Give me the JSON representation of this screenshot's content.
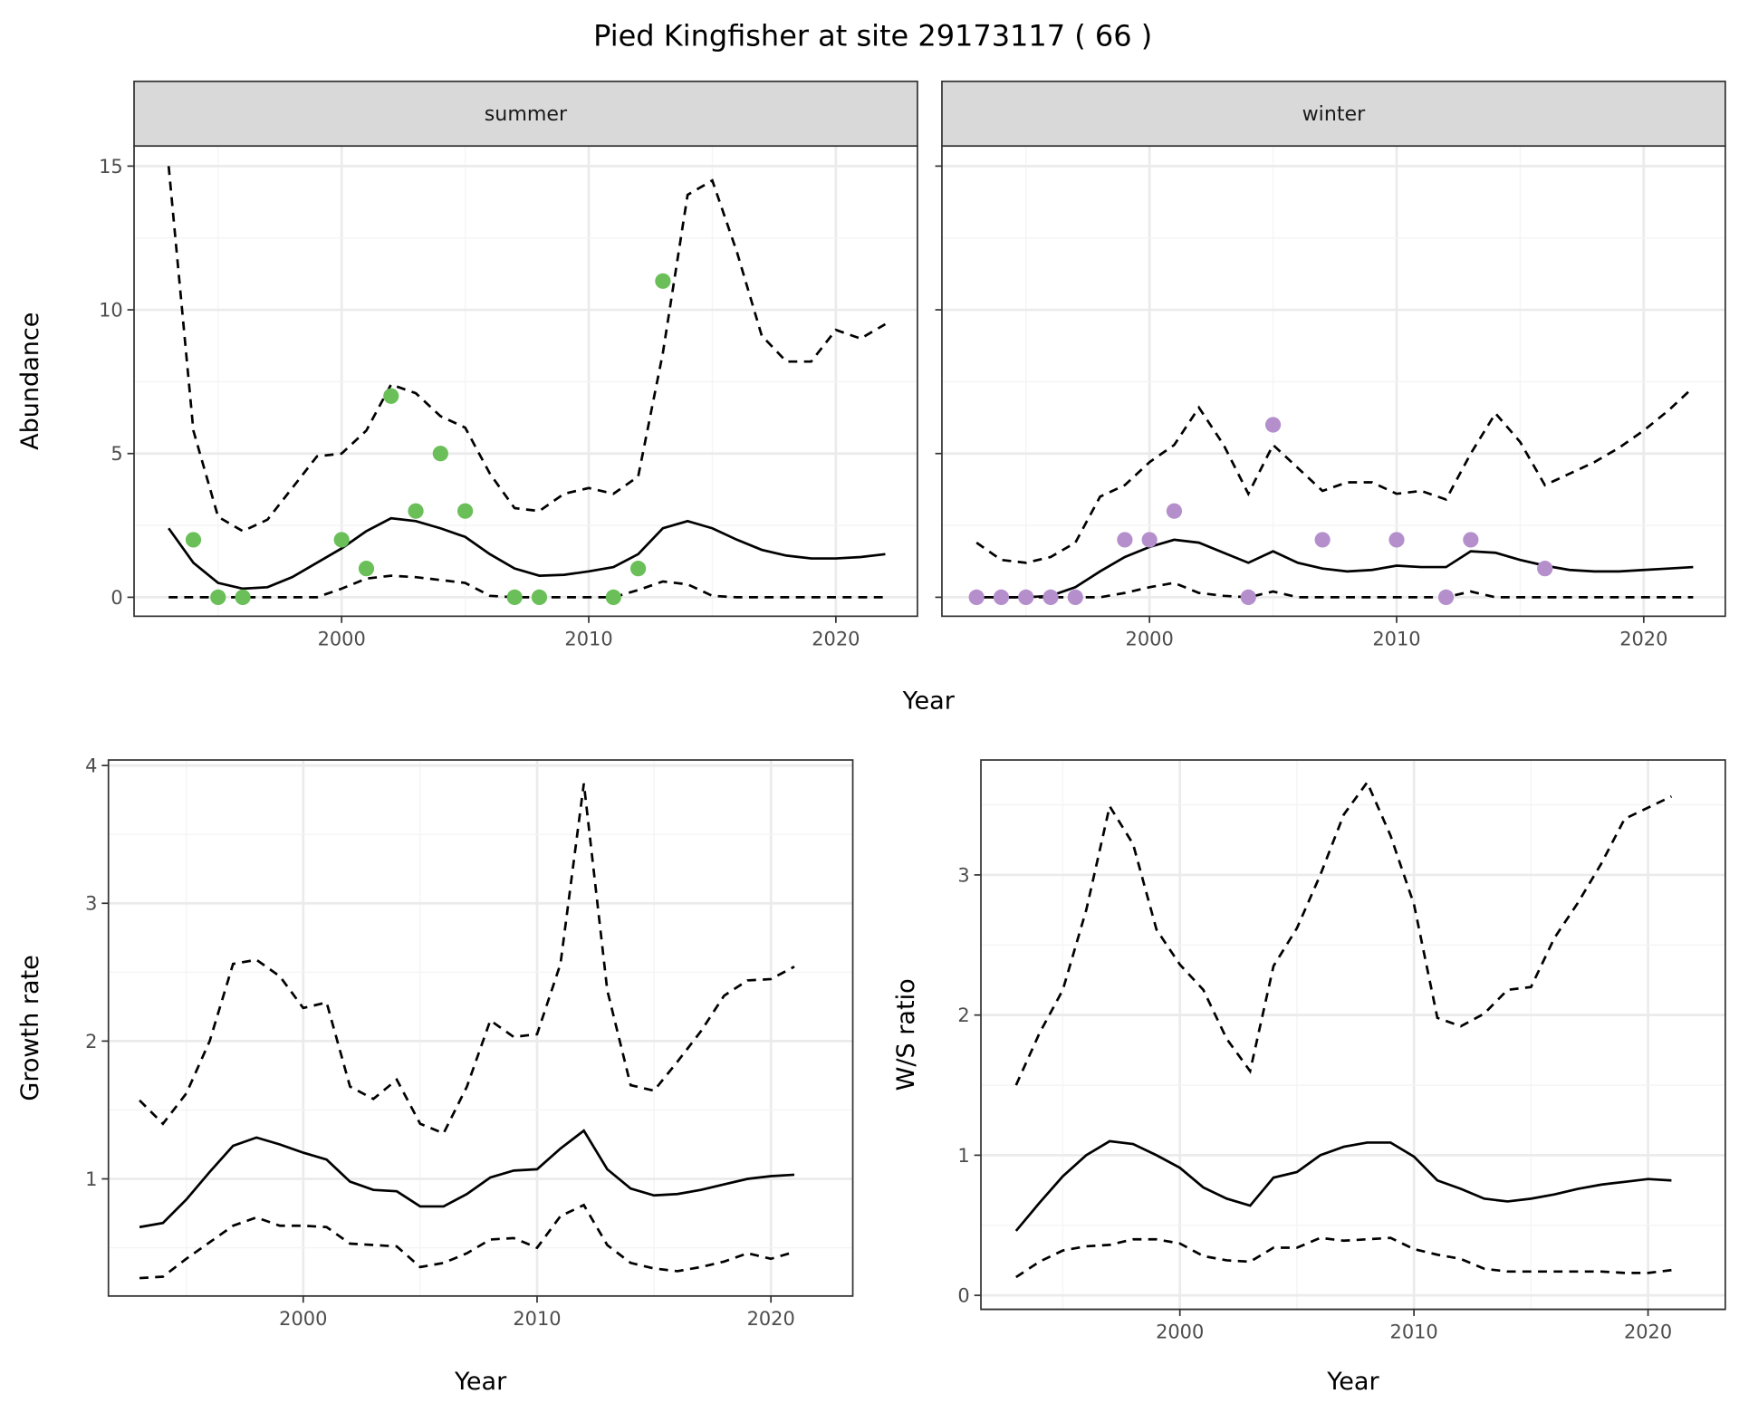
{
  "title": "Pied Kingfisher at site 29173117 ( 66 )",
  "colors": {
    "summer": "#6abf59",
    "winter": "#b48fcc",
    "line": "#000000"
  },
  "chart_data": [
    {
      "id": "summer",
      "type": "line",
      "strip": "summer",
      "xlabel": "Year",
      "ylabel": "Abundance",
      "xlim": [
        1991.6,
        2023.3
      ],
      "ylim": [
        -0.66,
        15.7
      ],
      "xticks": [
        2000,
        2010,
        2020
      ],
      "xtick_labels": [
        "2000",
        "2010",
        "2020"
      ],
      "yticks": [
        0,
        5,
        10,
        15
      ],
      "ytick_labels": [
        "0",
        "5",
        "10",
        "15"
      ],
      "grid": true,
      "x": [
        1993,
        1994,
        1995,
        1996,
        1997,
        1998,
        1999,
        2000,
        2001,
        2002,
        2003,
        2004,
        2005,
        2006,
        2007,
        2008,
        2009,
        2010,
        2011,
        2012,
        2013,
        2014,
        2015,
        2016,
        2017,
        2018,
        2019,
        2020,
        2021,
        2022
      ],
      "series": [
        {
          "name": "mean",
          "style": "solid",
          "values": [
            2.4,
            1.2,
            0.5,
            0.3,
            0.35,
            0.7,
            1.2,
            1.7,
            2.3,
            2.75,
            2.65,
            2.4,
            2.1,
            1.5,
            1.0,
            0.75,
            0.78,
            0.9,
            1.05,
            1.5,
            2.4,
            2.65,
            2.4,
            2.0,
            1.65,
            1.45,
            1.35,
            1.35,
            1.4,
            1.5
          ]
        },
        {
          "name": "upper",
          "style": "dashed",
          "values": [
            15,
            5.8,
            2.8,
            2.3,
            2.7,
            3.8,
            4.9,
            5.0,
            5.8,
            7.4,
            7.1,
            6.3,
            5.9,
            4.3,
            3.1,
            3.0,
            3.6,
            3.8,
            3.6,
            4.2,
            8.5,
            14,
            14.5,
            12,
            9.1,
            8.2,
            8.2,
            9.3,
            9.0,
            9.5
          ]
        },
        {
          "name": "lower",
          "style": "dashed",
          "values": [
            0,
            0,
            0,
            0,
            0,
            0,
            0,
            0.3,
            0.65,
            0.75,
            0.7,
            0.6,
            0.5,
            0.05,
            0,
            0,
            0,
            0,
            0,
            0.25,
            0.55,
            0.45,
            0.05,
            0,
            0,
            0,
            0,
            0,
            0,
            0
          ]
        }
      ],
      "points": {
        "x": [
          1994,
          1995,
          1996,
          2000,
          2001,
          2002,
          2003,
          2004,
          2005,
          2007,
          2008,
          2011,
          2012,
          2013
        ],
        "y": [
          2,
          0,
          0,
          2,
          1,
          7,
          3,
          5,
          3,
          0,
          0,
          0,
          1,
          11
        ]
      }
    },
    {
      "id": "winter",
      "type": "line",
      "strip": "winter",
      "xlabel": "",
      "ylabel": "",
      "xlim": [
        1991.6,
        2023.3
      ],
      "ylim": [
        -0.66,
        15.7
      ],
      "xticks": [
        2000,
        2010,
        2020
      ],
      "xtick_labels": [
        "2000",
        "2010",
        "2020"
      ],
      "yticks": [
        0,
        5,
        10,
        15
      ],
      "ytick_labels": [],
      "grid": true,
      "x": [
        1993,
        1994,
        1995,
        1996,
        1997,
        1998,
        1999,
        2000,
        2001,
        2002,
        2003,
        2004,
        2005,
        2006,
        2007,
        2008,
        2009,
        2010,
        2011,
        2012,
        2013,
        2014,
        2015,
        2016,
        2017,
        2018,
        2019,
        2020,
        2021,
        2022
      ],
      "series": [
        {
          "name": "mean",
          "style": "solid",
          "values": [
            0,
            0,
            0,
            0.05,
            0.35,
            0.9,
            1.4,
            1.75,
            2.0,
            1.9,
            1.55,
            1.2,
            1.6,
            1.2,
            1.0,
            0.9,
            0.95,
            1.1,
            1.05,
            1.05,
            1.6,
            1.55,
            1.3,
            1.1,
            0.95,
            0.9,
            0.9,
            0.95,
            1.0,
            1.05
          ]
        },
        {
          "name": "upper",
          "style": "dashed",
          "values": [
            1.9,
            1.3,
            1.2,
            1.4,
            1.9,
            3.5,
            3.9,
            4.7,
            5.3,
            6.6,
            5.3,
            3.6,
            5.3,
            4.5,
            3.7,
            4.0,
            4.0,
            3.6,
            3.7,
            3.4,
            5.0,
            6.4,
            5.4,
            3.9,
            4.3,
            4.7,
            5.2,
            5.8,
            6.5,
            7.3
          ]
        },
        {
          "name": "lower",
          "style": "dashed",
          "values": [
            0,
            0,
            0,
            0,
            0,
            0,
            0.15,
            0.35,
            0.5,
            0.15,
            0.05,
            0,
            0.2,
            0,
            0,
            0,
            0,
            0,
            0,
            0,
            0.2,
            0,
            0,
            0,
            0,
            0,
            0,
            0,
            0,
            0
          ]
        }
      ],
      "points": {
        "x": [
          1993,
          1994,
          1995,
          1996,
          1997,
          1999,
          2000,
          2001,
          2004,
          2005,
          2007,
          2010,
          2012,
          2013,
          2016
        ],
        "y": [
          0,
          0,
          0,
          0,
          0,
          2,
          2,
          3,
          0,
          6,
          2,
          2,
          0,
          2,
          1
        ]
      }
    },
    {
      "id": "growth",
      "type": "line",
      "xlabel": "Year",
      "ylabel": "Growth rate",
      "xlim": [
        1991.67,
        2023.5
      ],
      "ylim": [
        0.15,
        4.04
      ],
      "xticks": [
        2000,
        2010,
        2020
      ],
      "xtick_labels": [
        "2000",
        "2010",
        "2020"
      ],
      "yticks": [
        1,
        2,
        3,
        4
      ],
      "ytick_labels": [
        "1",
        "2",
        "3",
        "4"
      ],
      "grid": true,
      "x": [
        1993,
        1994,
        1995,
        1996,
        1997,
        1998,
        1999,
        2000,
        2001,
        2002,
        2003,
        2004,
        2005,
        2006,
        2007,
        2008,
        2009,
        2010,
        2011,
        2012,
        2013,
        2014,
        2015,
        2016,
        2017,
        2018,
        2019,
        2020,
        2021
      ],
      "series": [
        {
          "name": "mean",
          "style": "solid",
          "values": [
            0.65,
            0.68,
            0.85,
            1.05,
            1.24,
            1.3,
            1.25,
            1.19,
            1.14,
            0.98,
            0.92,
            0.91,
            0.8,
            0.8,
            0.89,
            1.01,
            1.06,
            1.07,
            1.22,
            1.35,
            1.07,
            0.93,
            0.88,
            0.89,
            0.92,
            0.96,
            1.0,
            1.02,
            1.03
          ]
        },
        {
          "name": "upper",
          "style": "dashed",
          "values": [
            1.57,
            1.4,
            1.62,
            2.0,
            2.56,
            2.59,
            2.47,
            2.24,
            2.28,
            1.67,
            1.58,
            1.72,
            1.4,
            1.33,
            1.67,
            2.15,
            2.03,
            2.05,
            2.56,
            3.87,
            2.37,
            1.68,
            1.64,
            1.85,
            2.07,
            2.33,
            2.44,
            2.45,
            2.54
          ]
        },
        {
          "name": "lower",
          "style": "dashed",
          "values": [
            0.28,
            0.29,
            0.42,
            0.54,
            0.66,
            0.72,
            0.66,
            0.66,
            0.65,
            0.53,
            0.52,
            0.51,
            0.36,
            0.39,
            0.46,
            0.56,
            0.57,
            0.5,
            0.73,
            0.81,
            0.52,
            0.39,
            0.35,
            0.33,
            0.36,
            0.4,
            0.46,
            0.42,
            0.47
          ]
        }
      ]
    },
    {
      "id": "ratio",
      "type": "line",
      "xlabel": "Year",
      "ylabel": "W/S ratio",
      "xlim": [
        1991.5,
        2023.3
      ],
      "ylim": [
        -0.1,
        3.82
      ],
      "xticks": [
        2000,
        2010,
        2020
      ],
      "xtick_labels": [
        "2000",
        "2010",
        "2020"
      ],
      "yticks": [
        0,
        1,
        2,
        3
      ],
      "ytick_labels": [
        "0",
        "1",
        "2",
        "3"
      ],
      "grid": true,
      "x": [
        1993,
        1994,
        1995,
        1996,
        1997,
        1998,
        1999,
        2000,
        2001,
        2002,
        2003,
        2004,
        2005,
        2006,
        2007,
        2008,
        2009,
        2010,
        2011,
        2012,
        2013,
        2014,
        2015,
        2016,
        2017,
        2018,
        2019,
        2020,
        2021
      ],
      "series": [
        {
          "name": "mean",
          "style": "solid",
          "values": [
            0.46,
            0.66,
            0.85,
            1.0,
            1.1,
            1.08,
            1.0,
            0.91,
            0.77,
            0.69,
            0.64,
            0.84,
            0.88,
            1.0,
            1.06,
            1.09,
            1.09,
            0.99,
            0.82,
            0.76,
            0.69,
            0.67,
            0.69,
            0.72,
            0.76,
            0.79,
            0.81,
            0.83,
            0.82
          ]
        },
        {
          "name": "upper",
          "style": "dashed",
          "values": [
            1.5,
            1.87,
            2.18,
            2.75,
            3.49,
            3.22,
            2.61,
            2.36,
            2.18,
            1.83,
            1.6,
            2.35,
            2.62,
            3.0,
            3.43,
            3.66,
            3.28,
            2.79,
            1.98,
            1.92,
            2.01,
            2.18,
            2.2,
            2.55,
            2.8,
            3.08,
            3.4,
            3.48,
            3.56
          ]
        },
        {
          "name": "lower",
          "style": "dashed",
          "values": [
            0.13,
            0.24,
            0.32,
            0.35,
            0.36,
            0.4,
            0.4,
            0.37,
            0.28,
            0.25,
            0.24,
            0.34,
            0.34,
            0.41,
            0.39,
            0.4,
            0.41,
            0.33,
            0.29,
            0.26,
            0.19,
            0.17,
            0.17,
            0.17,
            0.17,
            0.17,
            0.16,
            0.16,
            0.18
          ]
        }
      ]
    }
  ]
}
